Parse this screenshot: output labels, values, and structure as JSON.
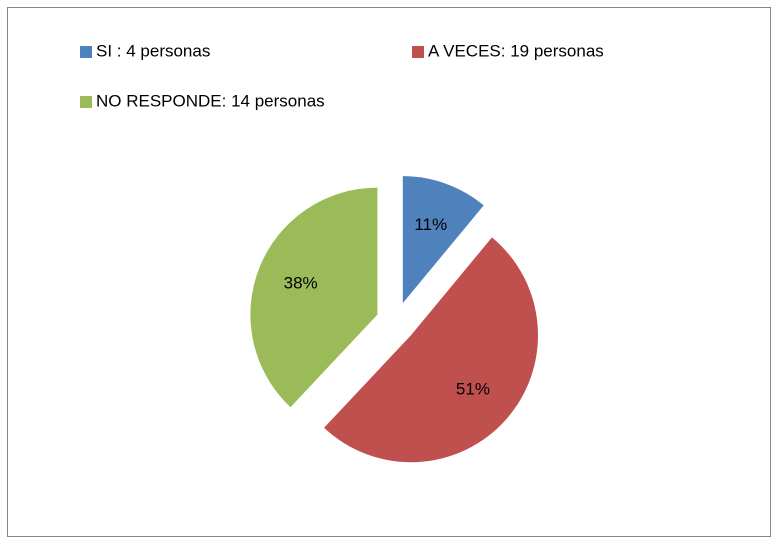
{
  "chart_data": {
    "type": "pie",
    "series": [
      {
        "name": "SI : 4 personas",
        "color": "#4f81bd",
        "values": [
          11
        ],
        "value_labels": [
          "11%"
        ]
      },
      {
        "name": "A VECES: 19 personas",
        "color": "#c0504d",
        "values": [
          51
        ],
        "value_labels": [
          "51%"
        ]
      },
      {
        "name": "NO RESPONDE: 14 personas",
        "color": "#9bbb59",
        "values": [
          38
        ],
        "value_labels": [
          "38%"
        ]
      }
    ],
    "legend": "top",
    "exploded": true
  }
}
